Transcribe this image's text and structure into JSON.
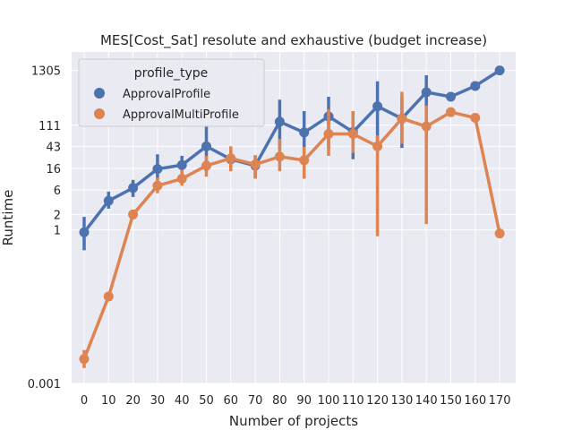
{
  "chart_data": {
    "type": "line",
    "title": "MES[Cost_Sat] resolute and exhaustive (budget increase)",
    "xlabel": "Number of projects",
    "ylabel": "Runtime",
    "y_scale": "log",
    "ylim": [
      0.001,
      3000
    ],
    "y_ticks": [
      0.001,
      1,
      2,
      6,
      16,
      43,
      111,
      1305
    ],
    "y_tick_labels": [
      "0.001",
      "1",
      "2",
      "6",
      "16",
      "43",
      "111",
      "1305"
    ],
    "categories": [
      "0",
      "10",
      "20",
      "30",
      "40",
      "50",
      "60",
      "70",
      "80",
      "90",
      "100",
      "110",
      "120",
      "130",
      "140",
      "150",
      "160",
      "170"
    ],
    "grid": true,
    "legend": {
      "title": "profile_type",
      "placement": "top-left"
    },
    "series": [
      {
        "name": "ApprovalProfile",
        "color": "#4c72b0",
        "values": [
          0.9,
          3.7,
          6.6,
          15.5,
          18.5,
          43,
          24,
          18,
          130,
          80,
          165,
          82,
          260,
          150,
          490,
          400,
          650,
          1305
        ],
        "ci_low": [
          0.4,
          2.6,
          4.4,
          9.5,
          11,
          14,
          15,
          10,
          38,
          22,
          40,
          24,
          50,
          40,
          60,
          400,
          650,
          1305
        ],
        "ci_high": [
          1.8,
          5.6,
          9.5,
          30,
          28,
          110,
          34,
          28,
          350,
          210,
          400,
          200,
          800,
          380,
          1050,
          400,
          650,
          1305
        ]
      },
      {
        "name": "ApprovalMultiProfile",
        "color": "#dd8452",
        "values": [
          0.003,
          0.05,
          2.0,
          7.3,
          10,
          18,
          25,
          19,
          27,
          23,
          75,
          75,
          43,
          150,
          105,
          200,
          155,
          0.85
        ],
        "ci_low": [
          0.002,
          0.05,
          2.0,
          5.2,
          7.3,
          11,
          14,
          10,
          14,
          10,
          28,
          32,
          0.75,
          48,
          1.3,
          200,
          155,
          0.85
        ],
        "ci_high": [
          0.0045,
          0.05,
          2.0,
          10.5,
          15,
          28,
          43,
          29,
          60,
          42,
          230,
          210,
          70,
          500,
          270,
          200,
          155,
          0.85
        ]
      }
    ]
  }
}
